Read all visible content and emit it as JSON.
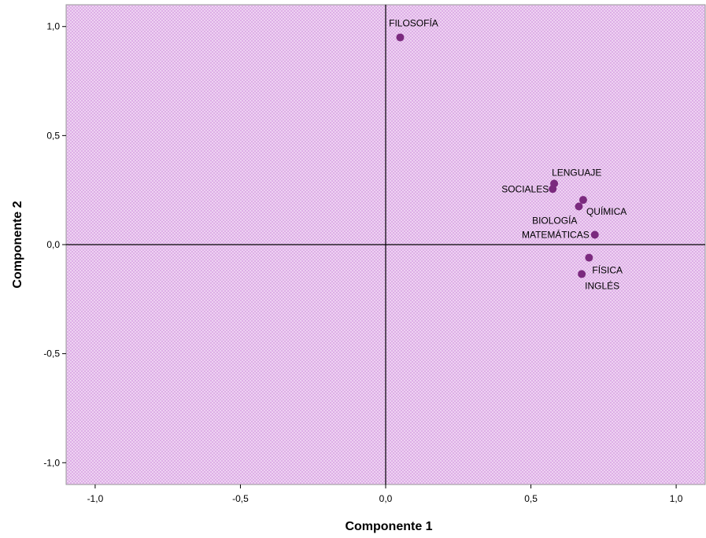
{
  "chart_data": {
    "type": "scatter",
    "xlabel": "Componente 1",
    "ylabel": "Componente 2",
    "xlim": [
      -1.1,
      1.1
    ],
    "ylim": [
      -1.1,
      1.1
    ],
    "xticks": [
      -1.0,
      -0.5,
      0.0,
      0.5,
      1.0
    ],
    "yticks": [
      -1.0,
      -0.5,
      0.0,
      0.5,
      1.0
    ],
    "xtick_labels": [
      "-1,0",
      "-0,5",
      "0,0",
      "0,5",
      "1,0"
    ],
    "ytick_labels": [
      "-1,0",
      "-0,5",
      "0,0",
      "0,5",
      "1,0"
    ],
    "grid": false,
    "reference_lines": {
      "x": 0,
      "y": 0
    },
    "colors": {
      "plot_background": "#f3dcf6",
      "hatch": "#d9a6e3",
      "point": "#7b2a7e",
      "reference_line": "#000000"
    },
    "points": [
      {
        "label": "FILOSOFÍA",
        "x": 0.05,
        "y": 0.95
      },
      {
        "label": "LENGUAJE",
        "x": 0.58,
        "y": 0.28
      },
      {
        "label": "SOCIALES",
        "x": 0.575,
        "y": 0.255
      },
      {
        "label": "QUÍMICA",
        "x": 0.68,
        "y": 0.205
      },
      {
        "label": "BIOLOGÍA",
        "x": 0.665,
        "y": 0.175
      },
      {
        "label": "MATEMÁTICAS",
        "x": 0.72,
        "y": 0.045
      },
      {
        "label": "FÍSICA",
        "x": 0.7,
        "y": -0.06
      },
      {
        "label": "INGLÉS",
        "x": 0.675,
        "y": -0.135
      }
    ]
  }
}
